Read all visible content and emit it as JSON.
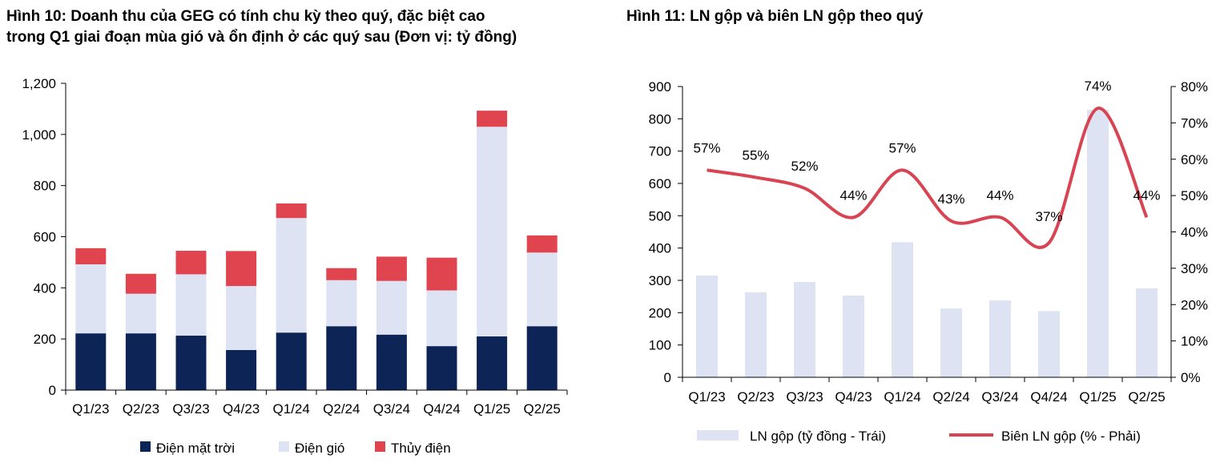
{
  "left": {
    "title_line1": "Hình 10: Doanh thu của GEG có tính chu kỳ theo quý, đặc biệt cao",
    "title_line2": "trong Q1 giai đoạn mùa gió và ổn định ở các quý sau (Đơn vị: tỷ đồng)"
  },
  "right": {
    "title": "Hình 11: LN gộp và biên LN gộp theo quý"
  },
  "colors": {
    "solar": "#0d2457",
    "wind": "#dde3f3",
    "hydro": "#e0454f",
    "gross_bar": "#dde3f3",
    "margin_line": "#d94452"
  },
  "chart_data": [
    {
      "type": "bar",
      "stacked": true,
      "categories": [
        "Q1/23",
        "Q2/23",
        "Q3/23",
        "Q4/23",
        "Q1/24",
        "Q2/24",
        "Q3/24",
        "Q4/24",
        "Q1/25",
        "Q2/25"
      ],
      "series": [
        {
          "name": "Điện mặt trời",
          "values": [
            222,
            222,
            213,
            157,
            225,
            250,
            217,
            172,
            210,
            250
          ]
        },
        {
          "name": "Điện gió",
          "values": [
            270,
            155,
            240,
            250,
            448,
            180,
            210,
            218,
            820,
            288
          ]
        },
        {
          "name": "Thủy điện",
          "values": [
            63,
            78,
            92,
            137,
            57,
            47,
            95,
            128,
            63,
            67
          ]
        }
      ],
      "ylim": [
        0,
        1200
      ],
      "yticks": [
        "0",
        "200",
        "400",
        "600",
        "800",
        "1,000",
        "1,200"
      ],
      "grid": false,
      "legend": "bottom"
    },
    {
      "type": "bar+line",
      "categories": [
        "Q1/23",
        "Q2/23",
        "Q3/23",
        "Q4/23",
        "Q1/24",
        "Q2/24",
        "Q3/24",
        "Q4/24",
        "Q1/25",
        "Q2/25"
      ],
      "series": [
        {
          "name": "LN gộp (tỷ đồng - Trái)",
          "type": "bar",
          "axis": "left",
          "values": [
            315,
            263,
            295,
            253,
            418,
            213,
            238,
            205,
            828,
            275
          ]
        },
        {
          "name": "Biên LN gộp (% - Phải)",
          "type": "line",
          "axis": "right",
          "values": [
            57,
            55,
            52,
            44,
            57,
            43,
            44,
            37,
            74,
            44
          ],
          "labels": [
            "57%",
            "55%",
            "52%",
            "44%",
            "57%",
            "43%",
            "44%",
            "37%",
            "74%",
            "44%"
          ]
        }
      ],
      "ylim_left": [
        0,
        900
      ],
      "yticks_left": [
        "0",
        "100",
        "200",
        "300",
        "400",
        "500",
        "600",
        "700",
        "800",
        "900"
      ],
      "ylim_right": [
        0,
        80
      ],
      "yticks_right": [
        "0%",
        "10%",
        "20%",
        "30%",
        "40%",
        "50%",
        "60%",
        "70%",
        "80%"
      ],
      "grid": false,
      "legend": "bottom"
    }
  ]
}
